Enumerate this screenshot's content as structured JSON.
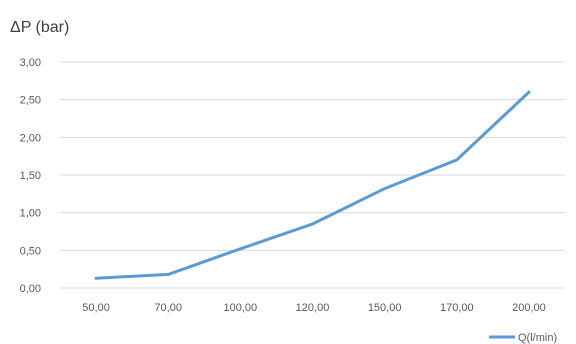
{
  "chart_data": {
    "type": "line",
    "title": "",
    "xlabel": "",
    "ylabel": "ΔP (bar)",
    "categories": [
      "50,00",
      "70,00",
      "100,00",
      "120,00",
      "150,00",
      "170,00",
      "200,00"
    ],
    "x": [
      50,
      70,
      100,
      120,
      150,
      170,
      200
    ],
    "series": [
      {
        "name": "Q(l/min)",
        "values": [
          0.13,
          0.18,
          0.52,
          0.85,
          1.32,
          1.7,
          2.6
        ],
        "color": "#5b9bd5"
      }
    ],
    "ylim": [
      0,
      3
    ],
    "yticks": [
      "0,00",
      "0,50",
      "1,00",
      "1,50",
      "2,00",
      "2,50",
      "3,00"
    ],
    "grid": true,
    "legend_position": "bottom-right"
  }
}
